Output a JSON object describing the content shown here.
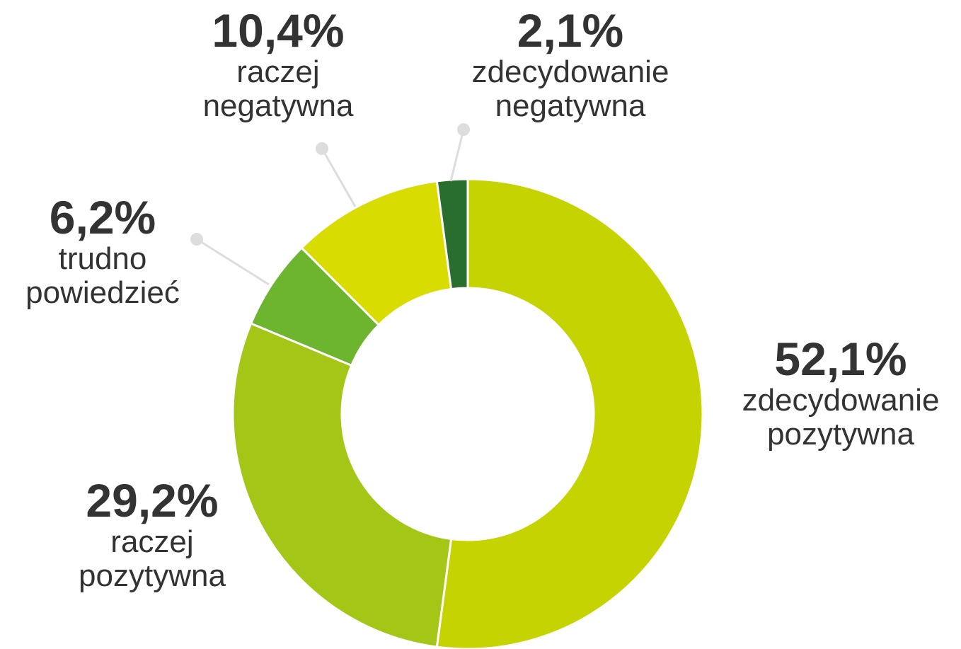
{
  "chart_data": {
    "type": "donut",
    "categories": [
      "zdecydowanie pozytywna",
      "raczej pozytywna",
      "trudno powiedzieć",
      "raczej negatywna",
      "zdecydowanie negatywna"
    ],
    "values": [
      52.1,
      29.2,
      6.2,
      10.4,
      2.1
    ],
    "value_labels": [
      "52,1%",
      "29,2%",
      "6,2%",
      "10,4%",
      "2,1%"
    ],
    "colors": [
      "#c5d300",
      "#a3c617",
      "#6db52f",
      "#d8dc00",
      "#2a6e2f"
    ]
  }
}
